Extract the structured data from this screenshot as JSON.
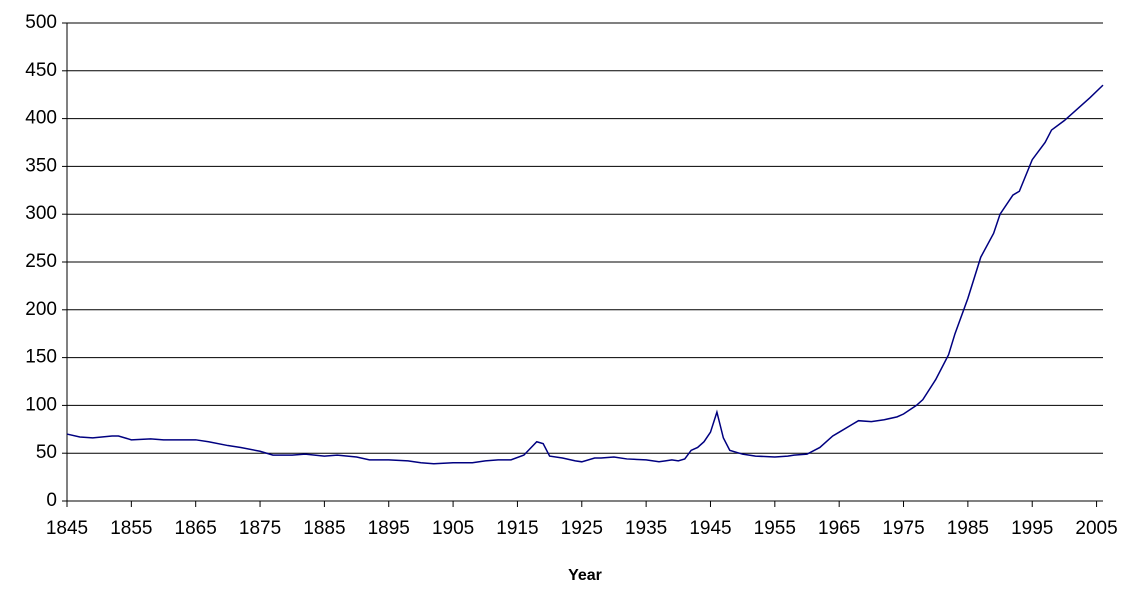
{
  "chart_data": {
    "type": "line",
    "x_label": "Year",
    "x": [
      1845,
      1847,
      1849,
      1852,
      1853,
      1855,
      1858,
      1860,
      1862,
      1865,
      1867,
      1870,
      1872,
      1875,
      1877,
      1880,
      1882,
      1885,
      1887,
      1890,
      1892,
      1895,
      1898,
      1900,
      1902,
      1905,
      1908,
      1910,
      1912,
      1914,
      1916,
      1918,
      1919,
      1920,
      1922,
      1924,
      1925,
      1927,
      1928,
      1930,
      1932,
      1935,
      1937,
      1938,
      1939,
      1940,
      1941,
      1942,
      1943,
      1944,
      1945,
      1946,
      1947,
      1948,
      1950,
      1952,
      1955,
      1957,
      1958,
      1960,
      1962,
      1964,
      1965,
      1967,
      1968,
      1970,
      1972,
      1974,
      1975,
      1977,
      1978,
      1980,
      1982,
      1983,
      1985,
      1987,
      1989,
      1990,
      1992,
      1993,
      1995,
      1997,
      1998,
      2000,
      2002,
      2004,
      2006
    ],
    "series": [
      {
        "name": "Year",
        "color": "#000080",
        "values": [
          70,
          67,
          66,
          68,
          68,
          64,
          65,
          64,
          64,
          64,
          62,
          58,
          56,
          52,
          48,
          48,
          49,
          47,
          48,
          46,
          43,
          43,
          42,
          40,
          39,
          40,
          40,
          42,
          43,
          43,
          48,
          62,
          60,
          47,
          45,
          42,
          41,
          45,
          45,
          46,
          44,
          43,
          41,
          42,
          43,
          42,
          44,
          53,
          56,
          62,
          72,
          93,
          66,
          53,
          49,
          47,
          46,
          47,
          48,
          49,
          56,
          68,
          72,
          80,
          84,
          83,
          85,
          88,
          91,
          100,
          106,
          127,
          153,
          175,
          212,
          255,
          280,
          300,
          320,
          324,
          357,
          375,
          388,
          398,
          410,
          422,
          435
        ]
      }
    ],
    "xlim": [
      1845,
      2006
    ],
    "ylim": [
      0,
      500
    ],
    "xticks": [
      1845,
      1855,
      1865,
      1875,
      1885,
      1895,
      1905,
      1915,
      1925,
      1935,
      1945,
      1955,
      1965,
      1975,
      1985,
      1995,
      2005
    ],
    "yticks": [
      0,
      50,
      100,
      150,
      200,
      250,
      300,
      350,
      400,
      450,
      500
    ],
    "grid": true
  }
}
